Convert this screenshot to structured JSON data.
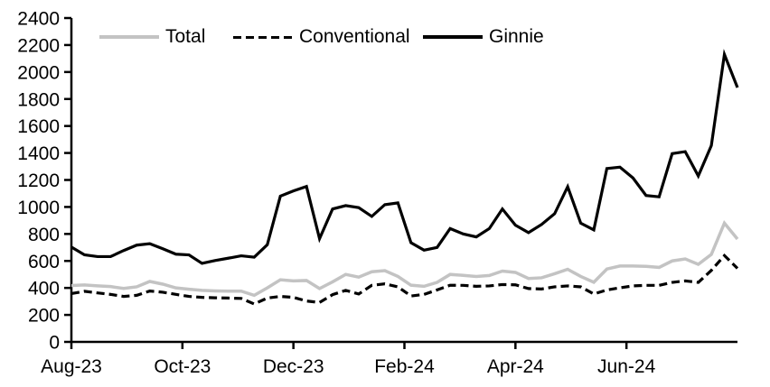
{
  "chart_data": {
    "type": "line",
    "title": "",
    "xlabel": "",
    "ylabel": "",
    "x_tick_labels": [
      "Aug-23",
      "Oct-23",
      "Dec-23",
      "Feb-24",
      "Apr-24",
      "Jun-24"
    ],
    "ylim": [
      0,
      2400
    ],
    "yticks": [
      0,
      200,
      400,
      600,
      800,
      1000,
      1200,
      1400,
      1600,
      1800,
      2000,
      2200,
      2400
    ],
    "grid": false,
    "legend_position": "top-inside",
    "axis_color": "#000000",
    "background_color": "#ffffff",
    "series": [
      {
        "name": "Total",
        "color": "#c3c3c3",
        "style": "solid",
        "values": [
          418,
          422,
          415,
          410,
          396,
          408,
          448,
          428,
          400,
          390,
          382,
          378,
          376,
          376,
          345,
          400,
          460,
          452,
          455,
          395,
          445,
          500,
          480,
          520,
          528,
          485,
          420,
          412,
          441,
          500,
          493,
          485,
          492,
          525,
          515,
          470,
          475,
          505,
          538,
          485,
          442,
          540,
          562,
          562,
          560,
          552,
          600,
          615,
          575,
          648,
          880,
          762
        ]
      },
      {
        "name": "Conventional",
        "color": "#000000",
        "style": "dashed",
        "values": [
          358,
          375,
          363,
          352,
          337,
          345,
          377,
          368,
          352,
          337,
          330,
          327,
          325,
          322,
          281,
          325,
          337,
          330,
          303,
          292,
          350,
          382,
          355,
          419,
          430,
          408,
          340,
          352,
          385,
          420,
          419,
          412,
          415,
          425,
          423,
          395,
          392,
          408,
          415,
          408,
          355,
          385,
          401,
          415,
          419,
          419,
          441,
          452,
          441,
          530,
          640,
          545
        ]
      },
      {
        "name": "Ginnie",
        "color": "#000000",
        "style": "solid",
        "values": [
          703,
          645,
          632,
          632,
          677,
          717,
          728,
          690,
          650,
          645,
          582,
          603,
          620,
          638,
          628,
          720,
          1080,
          1119,
          1152,
          765,
          985,
          1010,
          995,
          930,
          1017,
          1030,
          735,
          680,
          700,
          840,
          800,
          778,
          840,
          985,
          865,
          810,
          870,
          950,
          1150,
          880,
          830,
          1285,
          1295,
          1215,
          1085,
          1075,
          1395,
          1410,
          1230,
          1455,
          2130,
          1885
        ]
      }
    ]
  }
}
